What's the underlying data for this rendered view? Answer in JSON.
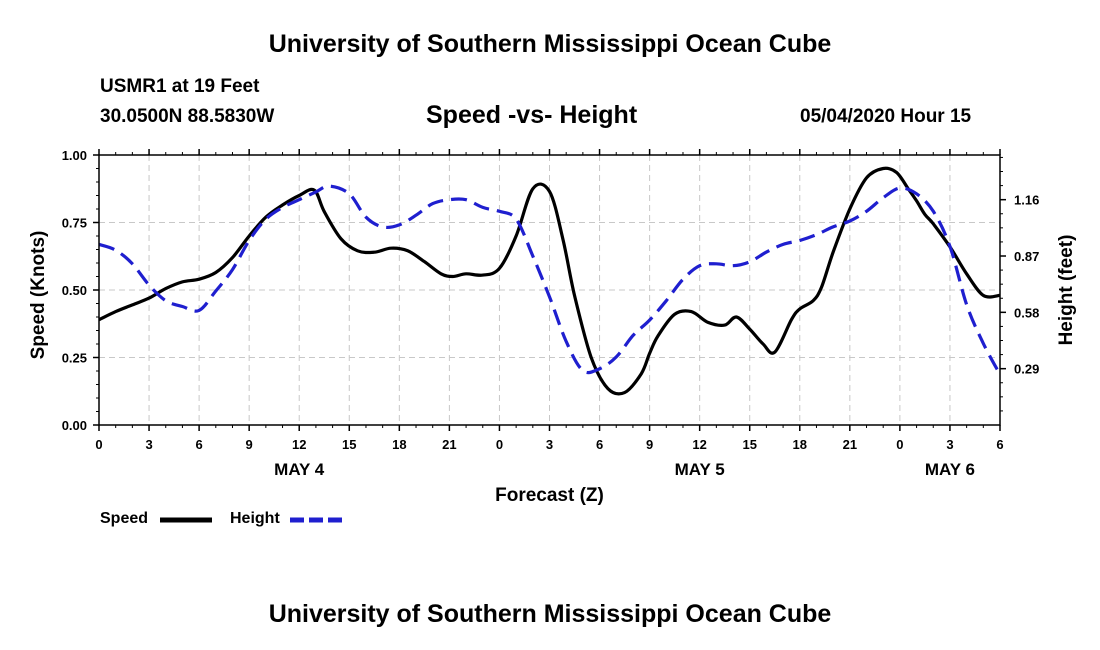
{
  "header": {
    "title": "University of Southern Mississippi Ocean Cube",
    "station": "USMR1 at 19 Feet",
    "coordinates": "30.0500N 88.5830W",
    "subtitle": "Speed -vs- Height",
    "datetime": "05/04/2020 Hour 15"
  },
  "footer": {
    "title": "University of Southern Mississippi Ocean Cube"
  },
  "chart_data": {
    "type": "line",
    "xlabel": "Forecast (Z)",
    "ylabel": "Speed (Knots)",
    "y2label": "Height (feet)",
    "xlim": [
      0,
      54
    ],
    "ylim": [
      0,
      1
    ],
    "y2lim": [
      0,
      1.39
    ],
    "x_ticks": [
      0,
      3,
      6,
      9,
      12,
      15,
      18,
      21,
      24,
      27,
      30,
      33,
      36,
      39,
      42,
      45,
      48,
      51,
      54
    ],
    "x_tick_labels": [
      "0",
      "3",
      "6",
      "9",
      "12",
      "15",
      "18",
      "21",
      "0",
      "3",
      "6",
      "9",
      "12",
      "15",
      "18",
      "21",
      "0",
      "3",
      "6"
    ],
    "day_labels": [
      {
        "x": 12,
        "label": "MAY 4"
      },
      {
        "x": 36,
        "label": "MAY 5"
      },
      {
        "x": 51,
        "label": "MAY 6"
      }
    ],
    "y_ticks": [
      0,
      0.25,
      0.5,
      0.75,
      1.0
    ],
    "y_tick_labels": [
      "0.00",
      "0.25",
      "0.50",
      "0.75",
      "1.00"
    ],
    "y2_ticks": [
      0.29,
      0.58,
      0.87,
      1.16
    ],
    "y2_tick_labels": [
      "0.29",
      "0.58",
      "0.87",
      "1.16"
    ],
    "grid": true,
    "series": [
      {
        "name": "Speed",
        "axis": "left",
        "color": "#000000",
        "dash": "solid",
        "x": [
          0,
          1,
          2,
          3,
          4,
          5,
          6,
          7,
          8,
          9,
          10,
          11,
          12,
          12.9,
          13.5,
          14.5,
          15.5,
          16.5,
          17.5,
          18.5,
          19.5,
          20.5,
          21.2,
          22,
          23,
          24,
          25,
          26,
          27,
          27.8,
          28.5,
          29.5,
          30.5,
          31.5,
          32.5,
          33,
          33.5,
          34.5,
          35.5,
          36.5,
          37.5,
          38.2,
          39,
          39.8,
          40.5,
          41.5,
          42,
          42.8,
          43.3,
          44,
          45,
          46,
          47,
          47.8,
          48.5,
          49,
          49.5,
          50,
          51,
          52,
          53,
          54
        ],
        "values": [
          0.39,
          0.42,
          0.445,
          0.47,
          0.505,
          0.53,
          0.54,
          0.565,
          0.62,
          0.7,
          0.77,
          0.815,
          0.85,
          0.87,
          0.79,
          0.69,
          0.645,
          0.64,
          0.655,
          0.645,
          0.605,
          0.56,
          0.55,
          0.56,
          0.555,
          0.58,
          0.7,
          0.875,
          0.865,
          0.69,
          0.48,
          0.25,
          0.135,
          0.12,
          0.19,
          0.265,
          0.33,
          0.41,
          0.42,
          0.38,
          0.37,
          0.4,
          0.355,
          0.3,
          0.27,
          0.39,
          0.43,
          0.46,
          0.51,
          0.64,
          0.8,
          0.915,
          0.95,
          0.935,
          0.875,
          0.83,
          0.78,
          0.745,
          0.66,
          0.56,
          0.48,
          0.48
        ]
      },
      {
        "name": "Height",
        "axis": "right",
        "color": "#1f1fcf",
        "dash": "dashed",
        "x": [
          0,
          1,
          2,
          3,
          4,
          5,
          6,
          7,
          8,
          9,
          10,
          11,
          12,
          13,
          13.8,
          15,
          16,
          17,
          18,
          19,
          20,
          21,
          22,
          23,
          24,
          25,
          26,
          27,
          28,
          29,
          30,
          31,
          32,
          33,
          34,
          35,
          36,
          37,
          38,
          39,
          40,
          41,
          42,
          43,
          44,
          45,
          46,
          47,
          48,
          49,
          50,
          51,
          52,
          53,
          54
        ],
        "values": [
          0.93,
          0.9,
          0.83,
          0.72,
          0.64,
          0.61,
          0.59,
          0.69,
          0.8,
          0.95,
          1.06,
          1.12,
          1.16,
          1.2,
          1.23,
          1.19,
          1.07,
          1.02,
          1.03,
          1.08,
          1.14,
          1.16,
          1.16,
          1.12,
          1.1,
          1.06,
          0.87,
          0.66,
          0.43,
          0.28,
          0.29,
          0.35,
          0.46,
          0.54,
          0.64,
          0.75,
          0.82,
          0.83,
          0.82,
          0.84,
          0.89,
          0.93,
          0.95,
          0.98,
          1.02,
          1.05,
          1.1,
          1.17,
          1.22,
          1.19,
          1.1,
          0.92,
          0.62,
          0.42,
          0.26
        ]
      }
    ],
    "legend": [
      {
        "label": "Speed",
        "color": "#000000",
        "dash": "solid"
      },
      {
        "label": "Height",
        "color": "#1f1fcf",
        "dash": "dashed"
      }
    ],
    "legend_position": "bottom-left"
  }
}
